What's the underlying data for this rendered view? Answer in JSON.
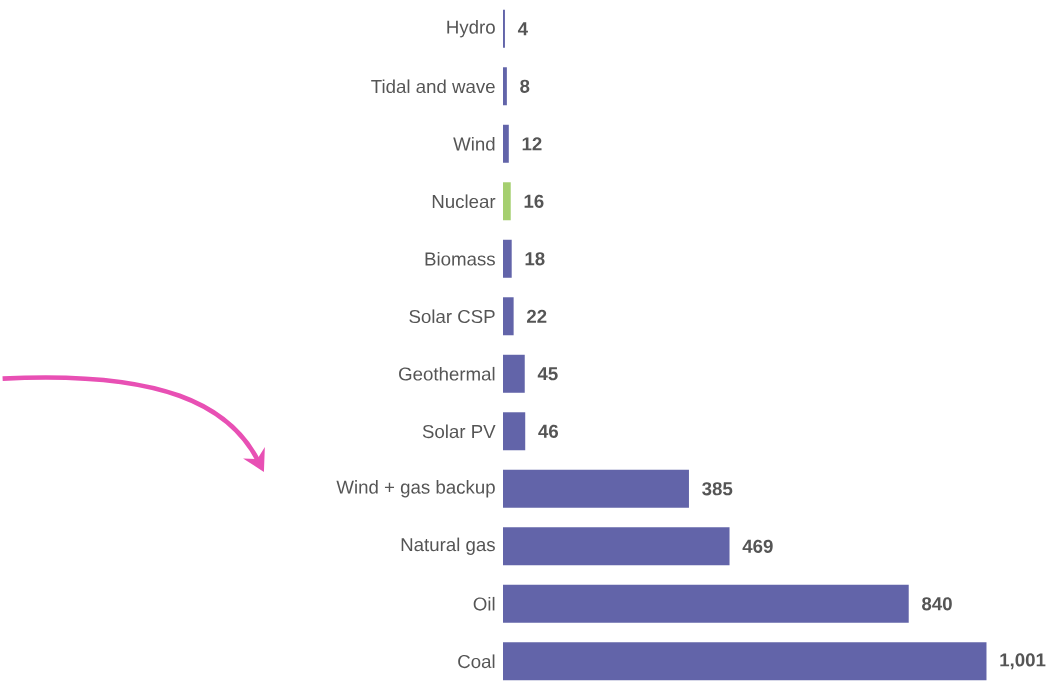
{
  "chart_data": {
    "type": "bar",
    "orientation": "horizontal",
    "categories": [
      "Hydro",
      "Tidal and wave",
      "Wind",
      "Nuclear",
      "Biomass",
      "Solar CSP",
      "Geothermal",
      "Solar PV",
      "Wind + gas backup",
      "Natural gas",
      "Oil",
      "Coal"
    ],
    "values": [
      4,
      8,
      12,
      16,
      18,
      22,
      45,
      46,
      385,
      469,
      840,
      1001
    ],
    "colors": [
      "#6264a9",
      "#6264a9",
      "#6264a9",
      "#a5cf6f",
      "#6264a9",
      "#6264a9",
      "#6264a9",
      "#6264a9",
      "#6264a9",
      "#6264a9",
      "#6264a9",
      "#6264a9"
    ],
    "value_labels": [
      "4",
      "8",
      "12",
      "16",
      "18",
      "22",
      "45",
      "46",
      "385",
      "469",
      "840",
      "1,001"
    ],
    "tick_labels": "y"
  }
}
